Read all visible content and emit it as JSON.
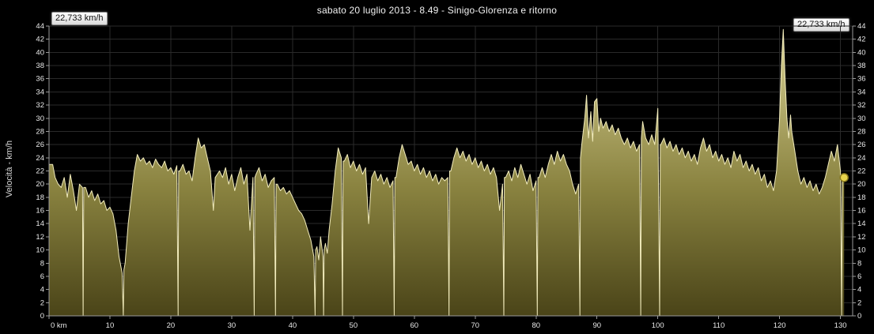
{
  "badges": {
    "left": "22,733 km/h",
    "right": "22,733 km/h"
  },
  "chart_data": {
    "type": "area",
    "title": "sabato 20 luglio 2013 - 8.49 - Sinigo-Glorenza e ritorno",
    "ylabel": "Velocità -  km/h",
    "xlabel": "km",
    "xlim": [
      0,
      132
    ],
    "ylim": [
      0,
      44
    ],
    "grid": true,
    "legend": "none",
    "x_ticks": [
      0,
      10,
      20,
      30,
      40,
      50,
      60,
      70,
      80,
      90,
      100,
      110,
      120,
      130
    ],
    "x_tick_labels": [
      "0 km",
      "10",
      "20",
      "30",
      "40",
      "50",
      "60",
      "70",
      "80",
      "90",
      "100",
      "110",
      "120",
      "130"
    ],
    "y_ticks": [
      0,
      2,
      4,
      6,
      8,
      10,
      12,
      14,
      16,
      18,
      20,
      22,
      24,
      26,
      28,
      30,
      32,
      34,
      36,
      38,
      40,
      42,
      44
    ],
    "colors": {
      "background": "#000000",
      "line": "#f2ecbc",
      "fill_top": "#d8d194",
      "fill_mid": "#8a8340",
      "fill_bottom": "#4a4418",
      "grid": "#2a2a2a",
      "axis": "#9a9a9a",
      "tick_text": "#e8e8e8",
      "marker_fill": "#e8d44d",
      "marker_stroke": "#8a7a1f"
    },
    "end_marker": {
      "x": 130.6,
      "y": 21
    },
    "series": [
      {
        "name": "Velocità (km/h)",
        "points": [
          [
            0,
            23
          ],
          [
            0.6,
            23
          ],
          [
            1,
            21
          ],
          [
            1.5,
            20
          ],
          [
            2,
            19.5
          ],
          [
            2.5,
            21
          ],
          [
            3,
            18
          ],
          [
            3.5,
            21.5
          ],
          [
            4,
            19
          ],
          [
            4.5,
            16
          ],
          [
            5,
            20
          ],
          [
            5.5,
            19.5
          ],
          [
            5.6,
            0
          ],
          [
            5.7,
            19.5
          ],
          [
            6,
            19.5
          ],
          [
            6.5,
            18
          ],
          [
            7,
            19
          ],
          [
            7.5,
            17.5
          ],
          [
            8,
            18.5
          ],
          [
            8.5,
            17
          ],
          [
            9,
            17.5
          ],
          [
            9.5,
            16
          ],
          [
            10,
            16.5
          ],
          [
            10.5,
            15.5
          ],
          [
            11,
            13
          ],
          [
            11.5,
            9
          ],
          [
            12,
            6.5
          ],
          [
            12.2,
            0
          ],
          [
            12.3,
            7
          ],
          [
            12.5,
            8
          ],
          [
            13,
            14
          ],
          [
            13.5,
            18
          ],
          [
            14,
            22
          ],
          [
            14.5,
            24.5
          ],
          [
            15,
            23.5
          ],
          [
            15.5,
            24
          ],
          [
            16,
            23
          ],
          [
            16.5,
            23.5
          ],
          [
            17,
            22.5
          ],
          [
            17.5,
            23.8
          ],
          [
            18,
            23
          ],
          [
            18.5,
            22.5
          ],
          [
            19,
            23.5
          ],
          [
            19.5,
            22
          ],
          [
            20,
            22.5
          ],
          [
            20.5,
            21.5
          ],
          [
            21,
            22.8
          ],
          [
            21.2,
            0
          ],
          [
            21.3,
            22
          ],
          [
            21.5,
            22
          ],
          [
            22,
            23
          ],
          [
            22.5,
            21.5
          ],
          [
            23,
            22
          ],
          [
            23.5,
            20.5
          ],
          [
            24,
            24
          ],
          [
            24.5,
            27
          ],
          [
            25,
            25.5
          ],
          [
            25.5,
            26
          ],
          [
            26,
            24
          ],
          [
            26.5,
            22
          ],
          [
            27,
            16
          ],
          [
            27.3,
            21
          ],
          [
            28,
            22
          ],
          [
            28.5,
            21
          ],
          [
            29,
            22.5
          ],
          [
            29.5,
            20
          ],
          [
            30,
            21.5
          ],
          [
            30.5,
            19
          ],
          [
            31,
            21
          ],
          [
            31.5,
            22.5
          ],
          [
            32,
            20
          ],
          [
            32.5,
            21.5
          ],
          [
            33,
            13
          ],
          [
            33.5,
            21
          ],
          [
            33.7,
            0
          ],
          [
            33.8,
            21
          ],
          [
            34,
            21.5
          ],
          [
            34.5,
            22.5
          ],
          [
            35,
            20.5
          ],
          [
            35.5,
            21.5
          ],
          [
            36,
            19.5
          ],
          [
            36.5,
            20.5
          ],
          [
            37,
            21
          ],
          [
            37.2,
            0
          ],
          [
            37.3,
            20
          ],
          [
            37.5,
            20
          ],
          [
            38,
            19
          ],
          [
            38.5,
            19.5
          ],
          [
            39,
            18.5
          ],
          [
            39.5,
            19
          ],
          [
            40,
            18
          ],
          [
            40.5,
            17
          ],
          [
            41,
            16
          ],
          [
            41.5,
            15.5
          ],
          [
            42,
            14.5
          ],
          [
            42.5,
            13
          ],
          [
            43,
            11.5
          ],
          [
            43.5,
            9
          ],
          [
            43.7,
            0
          ],
          [
            43.8,
            10
          ],
          [
            44,
            10.5
          ],
          [
            44.3,
            8.5
          ],
          [
            44.6,
            12
          ],
          [
            45,
            9
          ],
          [
            45.1,
            0
          ],
          [
            45.2,
            10
          ],
          [
            45.4,
            11
          ],
          [
            45.7,
            9.5
          ],
          [
            46,
            13
          ],
          [
            46.5,
            17
          ],
          [
            47,
            22
          ],
          [
            47.5,
            25.5
          ],
          [
            48,
            24
          ],
          [
            48.2,
            0
          ],
          [
            48.3,
            23.5
          ],
          [
            48.5,
            23.5
          ],
          [
            49,
            24.5
          ],
          [
            49.5,
            22.5
          ],
          [
            50,
            23.5
          ],
          [
            50.5,
            22
          ],
          [
            51,
            23
          ],
          [
            51.5,
            21.5
          ],
          [
            52,
            22.5
          ],
          [
            52.5,
            14
          ],
          [
            53,
            21
          ],
          [
            53.5,
            22
          ],
          [
            54,
            20.5
          ],
          [
            54.5,
            21.5
          ],
          [
            55,
            20
          ],
          [
            55.5,
            21
          ],
          [
            56,
            19.5
          ],
          [
            56.5,
            20.5
          ],
          [
            56.7,
            0
          ],
          [
            56.8,
            21
          ],
          [
            57,
            21
          ],
          [
            57.5,
            24
          ],
          [
            58,
            26
          ],
          [
            58.5,
            24.5
          ],
          [
            59,
            23
          ],
          [
            59.5,
            23.5
          ],
          [
            60,
            22
          ],
          [
            60.5,
            23
          ],
          [
            61,
            21.5
          ],
          [
            61.5,
            22.5
          ],
          [
            62,
            21
          ],
          [
            62.5,
            22
          ],
          [
            63,
            20.5
          ],
          [
            63.5,
            21.5
          ],
          [
            64,
            20
          ],
          [
            64.5,
            21
          ],
          [
            65,
            20.5
          ],
          [
            65.5,
            21
          ],
          [
            65.7,
            0
          ],
          [
            65.8,
            22
          ],
          [
            66,
            22
          ],
          [
            66.5,
            24
          ],
          [
            67,
            25.5
          ],
          [
            67.5,
            24
          ],
          [
            68,
            25
          ],
          [
            68.5,
            23.5
          ],
          [
            69,
            24.5
          ],
          [
            69.5,
            23
          ],
          [
            70,
            24
          ],
          [
            70.5,
            22.5
          ],
          [
            71,
            23.5
          ],
          [
            71.5,
            22
          ],
          [
            72,
            23
          ],
          [
            72.5,
            21.5
          ],
          [
            73,
            22.5
          ],
          [
            73.5,
            21
          ],
          [
            74,
            16
          ],
          [
            74.5,
            20
          ],
          [
            74.7,
            0
          ],
          [
            74.8,
            21
          ],
          [
            75,
            21
          ],
          [
            75.5,
            22
          ],
          [
            76,
            20.5
          ],
          [
            76.5,
            22.5
          ],
          [
            77,
            21
          ],
          [
            77.5,
            23
          ],
          [
            78,
            21.5
          ],
          [
            78.5,
            20
          ],
          [
            79,
            21.5
          ],
          [
            79.5,
            19
          ],
          [
            80,
            20.5
          ],
          [
            80.2,
            0
          ],
          [
            80.3,
            21
          ],
          [
            80.5,
            21
          ],
          [
            81,
            22.5
          ],
          [
            81.5,
            21
          ],
          [
            82,
            23
          ],
          [
            82.5,
            24.5
          ],
          [
            83,
            23
          ],
          [
            83.5,
            25
          ],
          [
            84,
            23.5
          ],
          [
            84.5,
            24.5
          ],
          [
            85,
            23
          ],
          [
            85.5,
            22
          ],
          [
            86,
            20
          ],
          [
            86.5,
            18.5
          ],
          [
            87,
            20
          ],
          [
            87.2,
            0
          ],
          [
            87.3,
            24
          ],
          [
            87.5,
            26
          ],
          [
            88,
            30
          ],
          [
            88.3,
            33.5
          ],
          [
            88.6,
            27
          ],
          [
            89,
            31
          ],
          [
            89.3,
            26.5
          ],
          [
            89.6,
            32.5
          ],
          [
            90,
            33
          ],
          [
            90.3,
            28
          ],
          [
            90.6,
            30
          ],
          [
            91,
            28.5
          ],
          [
            91.5,
            29.5
          ],
          [
            92,
            28
          ],
          [
            92.5,
            29
          ],
          [
            93,
            27.5
          ],
          [
            93.5,
            28.5
          ],
          [
            94,
            27
          ],
          [
            94.5,
            26
          ],
          [
            95,
            27
          ],
          [
            95.5,
            25.5
          ],
          [
            96,
            26.5
          ],
          [
            96.5,
            25
          ],
          [
            97,
            26
          ],
          [
            97.2,
            0
          ],
          [
            97.3,
            27
          ],
          [
            97.5,
            29.5
          ],
          [
            98,
            27
          ],
          [
            98.5,
            26
          ],
          [
            99,
            27.5
          ],
          [
            99.5,
            26
          ],
          [
            100,
            31.5
          ],
          [
            100.3,
            0
          ],
          [
            100.4,
            26
          ],
          [
            100.5,
            26
          ],
          [
            101,
            27
          ],
          [
            101.5,
            25.5
          ],
          [
            102,
            26.5
          ],
          [
            102.5,
            25
          ],
          [
            103,
            26
          ],
          [
            103.5,
            24.5
          ],
          [
            104,
            25.5
          ],
          [
            104.5,
            24
          ],
          [
            105,
            25
          ],
          [
            105.5,
            23.5
          ],
          [
            106,
            24.5
          ],
          [
            106.5,
            23
          ],
          [
            107,
            25.5
          ],
          [
            107.5,
            27
          ],
          [
            108,
            25
          ],
          [
            108.5,
            26
          ],
          [
            109,
            24
          ],
          [
            109.5,
            25
          ],
          [
            110,
            23.5
          ],
          [
            110.5,
            24.5
          ],
          [
            111,
            23
          ],
          [
            111.5,
            24
          ],
          [
            112,
            22.5
          ],
          [
            112.5,
            25
          ],
          [
            113,
            23.5
          ],
          [
            113.5,
            24.5
          ],
          [
            114,
            22.5
          ],
          [
            114.5,
            23.5
          ],
          [
            115,
            22
          ],
          [
            115.5,
            23
          ],
          [
            116,
            21.5
          ],
          [
            116.5,
            22.5
          ],
          [
            117,
            20.5
          ],
          [
            117.5,
            21.5
          ],
          [
            118,
            19.5
          ],
          [
            118.5,
            20.5
          ],
          [
            119,
            19
          ],
          [
            119.5,
            22
          ],
          [
            120,
            30
          ],
          [
            120.3,
            38
          ],
          [
            120.6,
            43.5
          ],
          [
            120.9,
            36
          ],
          [
            121.2,
            30
          ],
          [
            121.5,
            27
          ],
          [
            121.8,
            30.5
          ],
          [
            122,
            28
          ],
          [
            122.5,
            25
          ],
          [
            123,
            22
          ],
          [
            123.5,
            20
          ],
          [
            124,
            21
          ],
          [
            124.5,
            19.5
          ],
          [
            125,
            20.5
          ],
          [
            125.5,
            19
          ],
          [
            126,
            20
          ],
          [
            126.5,
            18.5
          ],
          [
            127,
            19.5
          ],
          [
            127.5,
            21
          ],
          [
            128,
            23
          ],
          [
            128.5,
            25
          ],
          [
            129,
            23.5
          ],
          [
            129.5,
            26
          ],
          [
            130,
            22
          ],
          [
            130.2,
            0
          ],
          [
            130.3,
            21
          ],
          [
            130.6,
            21
          ]
        ]
      }
    ]
  }
}
